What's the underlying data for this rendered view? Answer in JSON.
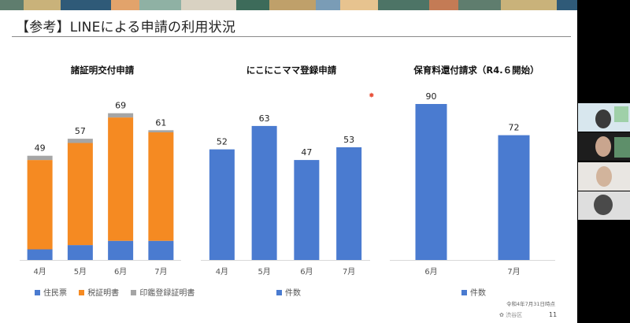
{
  "slide": {
    "title": "【参考】LINEによる申請の利用状況",
    "footnote": "令和4年7月31日時点",
    "logo_text": "渋谷区",
    "page_number": "11"
  },
  "colors": {
    "blue": "#4a7bd0",
    "orange": "#f58a22",
    "gray": "#a5a5a5",
    "axis": "#d9d9d9"
  },
  "legends": {
    "chart1": [
      "住民票",
      "税証明書",
      "印鑑登録証明書"
    ],
    "chart2": [
      "件数"
    ],
    "chart3": [
      "件数"
    ]
  },
  "chart_data": [
    {
      "type": "bar",
      "stacked": true,
      "title": "諸証明交付申請",
      "categories": [
        "4月",
        "5月",
        "6月",
        "7月"
      ],
      "series": [
        {
          "name": "住民票",
          "values": [
            5,
            7,
            9,
            9
          ]
        },
        {
          "name": "税証明書",
          "values": [
            42,
            48,
            58,
            51
          ]
        },
        {
          "name": "印鑑登録証明書",
          "values": [
            2,
            2,
            2,
            1
          ]
        }
      ],
      "totals": [
        49,
        57,
        69,
        61
      ],
      "legend": "bottom",
      "grid": false
    },
    {
      "type": "bar",
      "title": "にこにこママ登録申請",
      "categories": [
        "4月",
        "5月",
        "6月",
        "7月"
      ],
      "series": [
        {
          "name": "件数",
          "values": [
            52,
            63,
            47,
            53
          ]
        }
      ],
      "legend": "bottom",
      "grid": false
    },
    {
      "type": "bar",
      "title": "保育料還付請求（R4.６開始）",
      "categories": [
        "6月",
        "7月"
      ],
      "series": [
        {
          "name": "件数",
          "values": [
            90,
            72
          ]
        }
      ],
      "legend": "bottom",
      "grid": false
    }
  ]
}
